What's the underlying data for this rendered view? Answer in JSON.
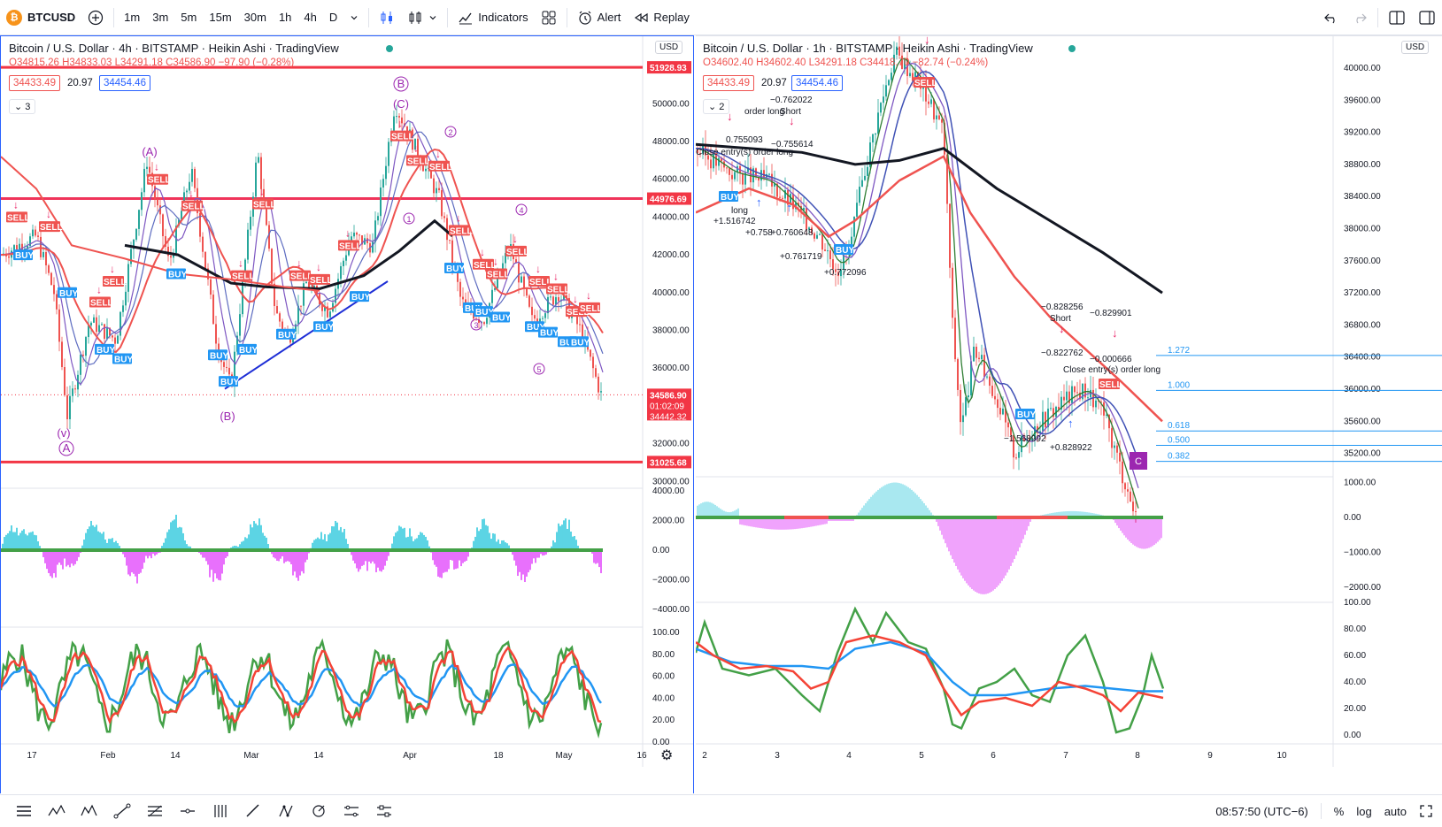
{
  "toolbar": {
    "symbol": "BTCUSD",
    "timeframes": [
      "1m",
      "3m",
      "5m",
      "15m",
      "30m",
      "1h",
      "4h",
      "D"
    ],
    "active_timeframe": "4h",
    "indicators_label": "Indicators",
    "alert_label": "Alert",
    "replay_label": "Replay"
  },
  "left_chart": {
    "title": "Bitcoin / U.S. Dollar · 4h · BITSTAMP · Heikin Ashi · TradingView",
    "ohlc": "O34815.26 H34833.03 L34291.18 C34586.90 −97.90 (−0.28%)",
    "bid": "34433.49",
    "spread": "20.97",
    "ask": "34454.46",
    "indicator_count": "3",
    "currency": "USD",
    "price_ticks": [
      "50000.00",
      "48000.00",
      "46000.00",
      "44000.00",
      "42000.00",
      "40000.00",
      "38000.00",
      "36000.00",
      "32000.00",
      "30000.00"
    ],
    "level_labels": [
      "51928.93",
      "44976.69",
      "31025.68"
    ],
    "last_price": "34586.90",
    "countdown": "01:02:09",
    "last_price_2": "34442.32",
    "osc_ticks": [
      "4000.00",
      "2000.00",
      "0.00",
      "−2000.00",
      "−4000.00"
    ],
    "rsi_ticks": [
      "100.00",
      "80.00",
      "60.00",
      "40.00",
      "20.00",
      "0.00"
    ],
    "time_ticks": [
      "17",
      "Feb",
      "14",
      "Mar",
      "14",
      "Apr",
      "18",
      "May",
      "16"
    ],
    "wave_labels": [
      "(A)",
      "(B)",
      "(C)",
      "B",
      "(v)",
      "A",
      "1",
      "2",
      "3",
      "4",
      "5"
    ],
    "buy_label": "BUY",
    "sell_label": "SELL"
  },
  "right_chart": {
    "title": "Bitcoin / U.S. Dollar · 1h · BITSTAMP · Heikin Ashi · TradingView",
    "ohlc": "O34602.40 H34602.40 L34291.18 C34418.70 −82.74 (−0.24%)",
    "bid": "34433.49",
    "spread": "20.97",
    "ask": "34454.46",
    "indicator_count": "2",
    "currency": "USD",
    "price_ticks": [
      "40000.00",
      "39600.00",
      "39200.00",
      "38800.00",
      "38400.00",
      "38000.00",
      "37600.00",
      "37200.00",
      "36800.00",
      "36400.00",
      "36000.00",
      "35600.00",
      "35200.00"
    ],
    "osc_ticks": [
      "1000.00",
      "0.00",
      "−1000.00",
      "−2000.00"
    ],
    "rsi_ticks": [
      "100.00",
      "80.00",
      "60.00",
      "40.00",
      "20.00",
      "0.00"
    ],
    "time_ticks": [
      "2",
      "3",
      "4",
      "5",
      "6",
      "7",
      "8",
      "9",
      "10"
    ],
    "fib_levels": [
      "1.272",
      "1.000",
      "0.618",
      "0.500",
      "0.382"
    ],
    "annotations": [
      "0.755093",
      "−0.755614",
      "−0.762022",
      "Short",
      "Close entry(s) order long",
      "long",
      "+1.516742",
      "+0.758",
      "+0.760648",
      "+0.761719",
      "+0.772096",
      "−0.828256",
      "Short",
      "−0.829901",
      "−0.822762",
      "−0.000666",
      "Close entry(s) order long",
      "−1.568992",
      "+0.828922",
      "order long"
    ],
    "buy_label": "BUY",
    "sell_label": "SELL",
    "c_label": "C"
  },
  "status": {
    "time": "08:57:50 (UTC−6)",
    "percent": "%",
    "log": "log",
    "auto": "auto"
  }
}
